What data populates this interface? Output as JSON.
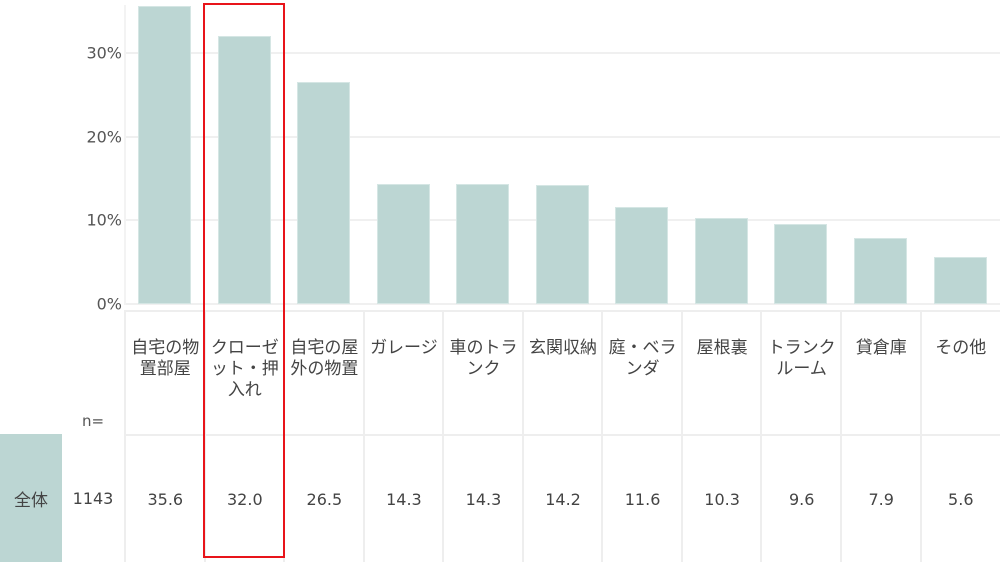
{
  "chart_data": {
    "type": "bar",
    "title": "",
    "xlabel": "",
    "ylabel": "",
    "ylim": [
      0,
      36
    ],
    "yticks": [
      "0%",
      "10%",
      "20%",
      "30%"
    ],
    "grid": true,
    "categories": [
      "自宅の物置部屋",
      "クローゼット・押入れ",
      "自宅の屋外の物置",
      "ガレージ",
      "車のトランク",
      "玄関収納",
      "庭・ベランダ",
      "屋根裏",
      "トランクルーム",
      "貸倉庫",
      "その他"
    ],
    "series": [
      {
        "name": "全体",
        "n": 1143,
        "values": [
          35.6,
          32.0,
          26.5,
          14.3,
          14.3,
          14.2,
          11.6,
          10.3,
          9.6,
          7.9,
          5.6
        ]
      }
    ],
    "highlighted_category": "クローゼット・押入れ",
    "colors": {
      "bar": "#bcd6d3",
      "highlight": "#e8141a"
    }
  },
  "table": {
    "n_header": "n=",
    "row_label": "全体",
    "n_value": "1143",
    "headers": [
      "自宅の物置部屋",
      "クローゼット・押入れ",
      "自宅の屋外の物置",
      "ガレージ",
      "車のトランク",
      "玄関収納",
      "庭・ベランダ",
      "屋根裏",
      "トランクルーム",
      "貸倉庫",
      "その他"
    ],
    "values": [
      "35.6",
      "32.0",
      "26.5",
      "14.3",
      "14.3",
      "14.2",
      "11.6",
      "10.3",
      "9.6",
      "7.9",
      "5.6"
    ]
  }
}
